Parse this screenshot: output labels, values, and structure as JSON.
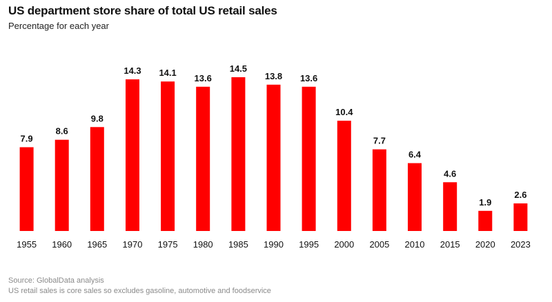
{
  "chart_data": {
    "type": "bar",
    "title": "US department store share of total US retail sales",
    "subtitle": "Percentage for each year",
    "categories": [
      "1955",
      "1960",
      "1965",
      "1970",
      "1975",
      "1980",
      "1985",
      "1990",
      "1995",
      "2000",
      "2005",
      "2010",
      "2015",
      "2020",
      "2023"
    ],
    "values": [
      7.9,
      8.6,
      9.8,
      14.3,
      14.1,
      13.6,
      14.5,
      13.8,
      13.6,
      10.4,
      7.7,
      6.4,
      4.6,
      1.9,
      2.6
    ],
    "value_labels": [
      "7.9",
      "8.6",
      "9.8",
      "14.3",
      "14.1",
      "13.6",
      "14.5",
      "13.8",
      "13.6",
      "10.4",
      "7.7",
      "6.4",
      "4.6",
      "1.9",
      "2.6"
    ],
    "xlabel": "",
    "ylabel": "",
    "ylim": [
      0,
      14.5
    ],
    "grid": false,
    "bar_color": "#ff0000"
  },
  "footer": {
    "source": "Source: GlobalData analysis",
    "note": "US retail sales is core sales so excludes gasoline, automotive and foodservice"
  }
}
